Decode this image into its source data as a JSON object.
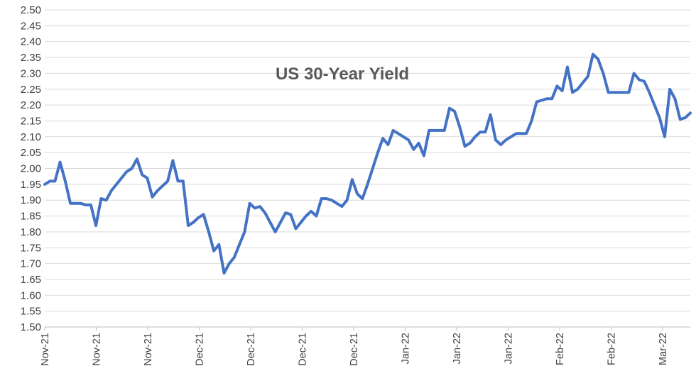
{
  "chart_data": {
    "type": "line",
    "title": "US 30-Year Yield",
    "xlabel": "",
    "ylabel": "",
    "ylim": [
      1.5,
      2.5
    ],
    "y_ticks": [
      "1.50",
      "1.55",
      "1.60",
      "1.65",
      "1.70",
      "1.75",
      "1.80",
      "1.85",
      "1.90",
      "1.95",
      "2.00",
      "2.05",
      "2.10",
      "2.15",
      "2.20",
      "2.25",
      "2.30",
      "2.35",
      "2.40",
      "2.45",
      "2.50"
    ],
    "x_tick_labels": [
      "Nov-21",
      "Nov-21",
      "Nov-21",
      "Dec-21",
      "Dec-21",
      "Dec-21",
      "Dec-21",
      "Jan-22",
      "Jan-22",
      "Jan-22",
      "Feb-22",
      "Feb-22",
      "Mar-22"
    ],
    "grid": true,
    "legend": "none",
    "line_color": "#4472C4",
    "series": [
      {
        "values": [
          1.95,
          1.96,
          1.96,
          2.02,
          1.96,
          1.89,
          1.89,
          1.89,
          1.885,
          1.885,
          1.82,
          1.905,
          1.9,
          1.93,
          1.95,
          1.97,
          1.99,
          2.0,
          2.03,
          1.98,
          1.97,
          1.91,
          1.93,
          1.945,
          1.96,
          2.025,
          1.96,
          1.96,
          1.82,
          1.83,
          1.845,
          1.855,
          1.8,
          1.74,
          1.76,
          1.67,
          1.7,
          1.72,
          1.76,
          1.8,
          1.89,
          1.875,
          1.88,
          1.86,
          1.83,
          1.8,
          1.83,
          1.86,
          1.855,
          1.81,
          1.83,
          1.85,
          1.865,
          1.85,
          1.905,
          1.905,
          1.9,
          1.89,
          1.88,
          1.9,
          1.965,
          1.92,
          1.905,
          1.95,
          2.0,
          2.05,
          2.095,
          2.075,
          2.12,
          2.11,
          2.1,
          2.09,
          2.06,
          2.08,
          2.04,
          2.12,
          2.12,
          2.12,
          2.12,
          2.19,
          2.18,
          2.13,
          2.07,
          2.08,
          2.1,
          2.115,
          2.115,
          2.17,
          2.09,
          2.075,
          2.09,
          2.1,
          2.11,
          2.11,
          2.11,
          2.15,
          2.21,
          2.215,
          2.22,
          2.22,
          2.26,
          2.245,
          2.32,
          2.24,
          2.25,
          2.27,
          2.29,
          2.36,
          2.345,
          2.3,
          2.24,
          2.24,
          2.24,
          2.24,
          2.24,
          2.3,
          2.28,
          2.275,
          2.24,
          2.2,
          2.16,
          2.1,
          2.25,
          2.22,
          2.155,
          2.16,
          2.175
        ]
      }
    ]
  }
}
